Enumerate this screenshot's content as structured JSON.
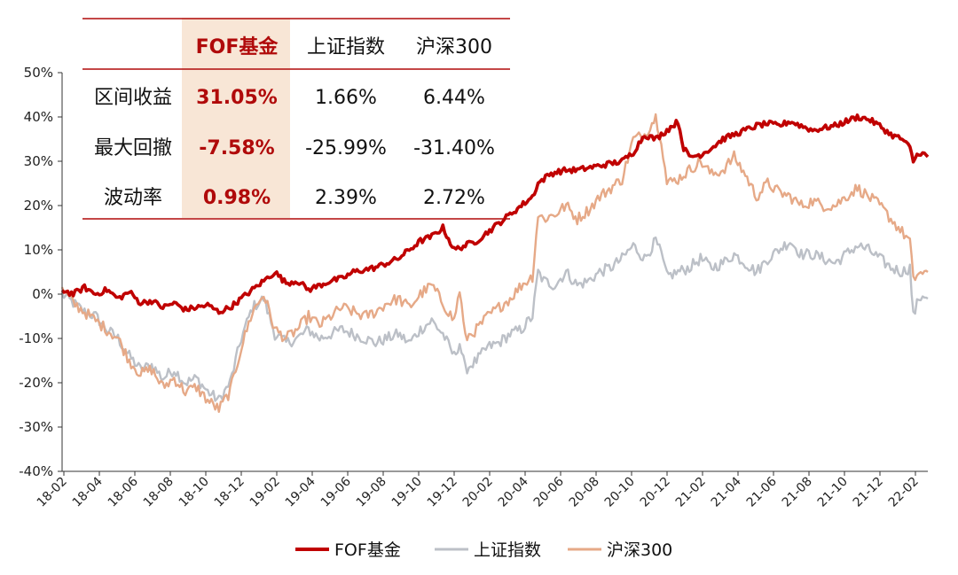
{
  "chart_data": {
    "type": "line",
    "xlabel": "",
    "ylabel": "",
    "ylim": [
      -40,
      50
    ],
    "yticks": [
      50,
      40,
      30,
      20,
      10,
      0,
      -10,
      -20,
      -30,
      -40
    ],
    "ytick_labels": [
      "50%",
      "40%",
      "30%",
      "20%",
      "10%",
      "0%",
      "-10%",
      "-20%",
      "-30%",
      "-40%"
    ],
    "xtick_labels": [
      "18-02",
      "18-04",
      "18-06",
      "18-08",
      "18-10",
      "18-12",
      "19-02",
      "19-04",
      "19-06",
      "19-08",
      "19-10",
      "19-12",
      "20-02",
      "20-04",
      "20-06",
      "20-08",
      "20-10",
      "20-12",
      "21-02",
      "21-04",
      "21-06",
      "21-08",
      "21-10",
      "21-12",
      "22-02"
    ],
    "x_range_months": [
      0,
      49.3
    ],
    "legend_position": "bottom",
    "grid": false,
    "series": [
      {
        "name": "FOF基金",
        "color": "#c00000",
        "points": [
          [
            0,
            1
          ],
          [
            1,
            0
          ],
          [
            2,
            1.5
          ],
          [
            3,
            0
          ],
          [
            4,
            1
          ],
          [
            5,
            -1
          ],
          [
            6,
            0.5
          ],
          [
            7,
            -2
          ],
          [
            8,
            -1.5
          ],
          [
            9,
            -3
          ],
          [
            10,
            -2
          ],
          [
            11,
            -3.5
          ],
          [
            12,
            -3
          ],
          [
            13,
            -2.5
          ],
          [
            14,
            -4
          ],
          [
            15,
            -3
          ],
          [
            16,
            -1
          ],
          [
            17,
            1
          ],
          [
            18,
            3
          ],
          [
            19,
            5
          ],
          [
            20,
            2.5
          ],
          [
            21,
            3
          ],
          [
            22,
            1
          ],
          [
            23,
            2
          ],
          [
            24,
            3
          ],
          [
            25,
            3.5
          ],
          [
            26,
            5
          ],
          [
            27,
            5.5
          ],
          [
            28,
            6
          ],
          [
            29,
            7
          ],
          [
            30,
            8
          ],
          [
            31,
            10
          ],
          [
            32,
            12
          ],
          [
            33,
            13
          ],
          [
            34,
            15
          ],
          [
            35,
            10
          ],
          [
            36,
            11
          ],
          [
            37,
            12
          ],
          [
            38,
            14
          ],
          [
            39,
            16
          ],
          [
            40,
            18
          ],
          [
            41,
            20
          ],
          [
            42,
            22
          ],
          [
            42.5,
            25
          ],
          [
            43,
            26
          ],
          [
            43.5,
            27
          ],
          [
            44,
            27.5
          ],
          [
            45,
            28
          ],
          [
            46,
            28
          ],
          [
            47,
            28.5
          ],
          [
            48,
            29
          ],
          [
            49,
            29.5
          ],
          [
            50,
            30
          ],
          [
            51,
            32
          ],
          [
            52,
            36
          ],
          [
            53,
            35
          ],
          [
            54,
            37
          ],
          [
            55,
            39
          ],
          [
            55.5,
            33
          ],
          [
            56,
            31
          ],
          [
            57,
            31.5
          ],
          [
            58,
            33
          ],
          [
            59,
            35
          ],
          [
            60,
            36
          ],
          [
            61,
            37
          ],
          [
            62,
            38
          ],
          [
            63,
            38.5
          ],
          [
            64,
            38
          ],
          [
            65,
            39
          ],
          [
            66,
            38
          ],
          [
            67,
            37
          ],
          [
            68,
            37.5
          ],
          [
            69,
            38
          ],
          [
            70,
            39
          ],
          [
            71,
            40
          ],
          [
            72,
            39.5
          ],
          [
            73,
            38
          ],
          [
            74,
            36
          ],
          [
            75,
            35
          ],
          [
            75.7,
            33
          ],
          [
            76,
            30
          ],
          [
            76.5,
            32
          ],
          [
            77,
            31.5
          ],
          [
            77.3,
            31
          ]
        ]
      },
      {
        "name": "上证指数",
        "color": "#bcc0c7",
        "points": [
          [
            0,
            0
          ],
          [
            1,
            -2
          ],
          [
            2,
            -4
          ],
          [
            3,
            -5
          ],
          [
            4,
            -8
          ],
          [
            5,
            -10
          ],
          [
            6,
            -14
          ],
          [
            7,
            -17
          ],
          [
            8,
            -16
          ],
          [
            9,
            -19
          ],
          [
            10,
            -17
          ],
          [
            11,
            -20
          ],
          [
            12,
            -19
          ],
          [
            13,
            -22
          ],
          [
            14,
            -24
          ],
          [
            15,
            -20
          ],
          [
            16,
            -10
          ],
          [
            17,
            -3
          ],
          [
            18,
            -1
          ],
          [
            18.5,
            -5
          ],
          [
            19,
            -9
          ],
          [
            20,
            -11
          ],
          [
            21,
            -10
          ],
          [
            22,
            -8
          ],
          [
            23,
            -10
          ],
          [
            24,
            -9
          ],
          [
            25,
            -8
          ],
          [
            26,
            -9
          ],
          [
            27,
            -10
          ],
          [
            28,
            -11
          ],
          [
            29,
            -10
          ],
          [
            30,
            -9
          ],
          [
            31,
            -11
          ],
          [
            32,
            -8
          ],
          [
            33,
            -6
          ],
          [
            34,
            -9
          ],
          [
            35,
            -14
          ],
          [
            35.5,
            -11
          ],
          [
            36,
            -17
          ],
          [
            37,
            -15
          ],
          [
            38,
            -12
          ],
          [
            39,
            -11
          ],
          [
            40,
            -9
          ],
          [
            41,
            -8
          ],
          [
            42,
            -5
          ],
          [
            42.5,
            5
          ],
          [
            43,
            3
          ],
          [
            44,
            2
          ],
          [
            45,
            5
          ],
          [
            46,
            2
          ],
          [
            47,
            3
          ],
          [
            48,
            5
          ],
          [
            49,
            6
          ],
          [
            50,
            8
          ],
          [
            51,
            11
          ],
          [
            52,
            8
          ],
          [
            53,
            12
          ],
          [
            53.5,
            9
          ],
          [
            54,
            4
          ],
          [
            55,
            5
          ],
          [
            56,
            6
          ],
          [
            57,
            8
          ],
          [
            58,
            6
          ],
          [
            59,
            7
          ],
          [
            60,
            9
          ],
          [
            61,
            7
          ],
          [
            62,
            5
          ],
          [
            63,
            8
          ],
          [
            64,
            10
          ],
          [
            65,
            12
          ],
          [
            66,
            9
          ],
          [
            67,
            9
          ],
          [
            68,
            8
          ],
          [
            69,
            7
          ],
          [
            70,
            9
          ],
          [
            71,
            11
          ],
          [
            72,
            10
          ],
          [
            73,
            8
          ],
          [
            74,
            6
          ],
          [
            75,
            5
          ],
          [
            75.7,
            6
          ],
          [
            76,
            -5
          ],
          [
            76.5,
            -1
          ],
          [
            77,
            0
          ],
          [
            77.3,
            -1
          ]
        ]
      },
      {
        "name": "沪深300",
        "color": "#e6a987",
        "points": [
          [
            0,
            1
          ],
          [
            1,
            -2
          ],
          [
            2,
            -4
          ],
          [
            3,
            -6
          ],
          [
            4,
            -8
          ],
          [
            5,
            -10
          ],
          [
            6,
            -15
          ],
          [
            7,
            -18
          ],
          [
            8,
            -17
          ],
          [
            9,
            -21
          ],
          [
            10,
            -19
          ],
          [
            11,
            -22
          ],
          [
            12,
            -21
          ],
          [
            13,
            -24
          ],
          [
            14,
            -26
          ],
          [
            15,
            -22
          ],
          [
            16,
            -12
          ],
          [
            17,
            -4
          ],
          [
            18,
            0
          ],
          [
            18.5,
            -4
          ],
          [
            19,
            -8
          ],
          [
            20,
            -10
          ],
          [
            21,
            -8
          ],
          [
            22,
            -5
          ],
          [
            23,
            -7
          ],
          [
            24,
            -5
          ],
          [
            25,
            -3
          ],
          [
            26,
            -4
          ],
          [
            27,
            -5
          ],
          [
            28,
            -4
          ],
          [
            29,
            -2
          ],
          [
            30,
            -1
          ],
          [
            31,
            -3
          ],
          [
            32,
            0
          ],
          [
            33,
            2
          ],
          [
            34,
            -2
          ],
          [
            35,
            -6
          ],
          [
            35.5,
            1
          ],
          [
            36,
            -10
          ],
          [
            37,
            -8
          ],
          [
            38,
            -5
          ],
          [
            39,
            -3
          ],
          [
            40,
            -1
          ],
          [
            41,
            2
          ],
          [
            42,
            4
          ],
          [
            42.5,
            18
          ],
          [
            43,
            17
          ],
          [
            44,
            18
          ],
          [
            45,
            20
          ],
          [
            46,
            17
          ],
          [
            47,
            19
          ],
          [
            48,
            22
          ],
          [
            49,
            24
          ],
          [
            50,
            26
          ],
          [
            51,
            35
          ],
          [
            52,
            36
          ],
          [
            53,
            40
          ],
          [
            53.5,
            35
          ],
          [
            54,
            25
          ],
          [
            55,
            26
          ],
          [
            56,
            28
          ],
          [
            57,
            30
          ],
          [
            58,
            27
          ],
          [
            59,
            28
          ],
          [
            60,
            31
          ],
          [
            61,
            27
          ],
          [
            62,
            22
          ],
          [
            63,
            25
          ],
          [
            64,
            23
          ],
          [
            65,
            22
          ],
          [
            66,
            20
          ],
          [
            67,
            21
          ],
          [
            68,
            20
          ],
          [
            69,
            20
          ],
          [
            70,
            22
          ],
          [
            71,
            24
          ],
          [
            72,
            22
          ],
          [
            73,
            20
          ],
          [
            74,
            17
          ],
          [
            75,
            14
          ],
          [
            75.7,
            12
          ],
          [
            76,
            3
          ],
          [
            76.5,
            5
          ],
          [
            77,
            4
          ],
          [
            77.3,
            5
          ]
        ]
      }
    ]
  },
  "summary_table": {
    "headers": [
      "",
      "FOF基金",
      "上证指数",
      "沪深300"
    ],
    "rows": [
      [
        "区间收益",
        "31.05%",
        "1.66%",
        "6.44%"
      ],
      [
        "最大回撤",
        "-7.58%",
        "-25.99%",
        "-31.40%"
      ],
      [
        "波动率",
        "0.98%",
        "2.39%",
        "2.72%"
      ]
    ],
    "highlight_column_color": "#f8e6d6",
    "rule_color": "#b00a0a"
  },
  "legend": {
    "items": [
      "FOF基金",
      "上证指数",
      "沪深300"
    ]
  }
}
